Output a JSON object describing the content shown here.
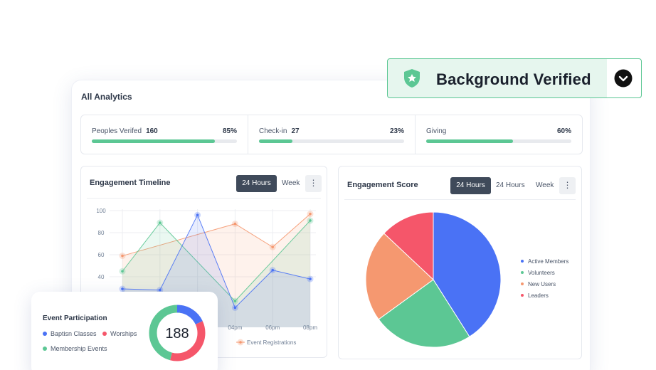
{
  "analytics": {
    "title": "All Analytics"
  },
  "stats": [
    {
      "label": "Peoples Verifed",
      "value": "160",
      "percent": "85%",
      "progress": 0.85
    },
    {
      "label": "Check-in",
      "value": "27",
      "percent": "23%",
      "progress": 0.23
    },
    {
      "label": "Giving",
      "value": "",
      "percent": "60%",
      "progress": 0.6
    }
  ],
  "engagement_timeline": {
    "title": "Engagement Timeline",
    "btn_24h": "24 Hours",
    "btn_week": "Week",
    "more_icon": "vertical-dots-icon"
  },
  "engagement_score": {
    "title": "Engagement Score",
    "btn_24h_a": "24 Hours",
    "btn_24h_b": "24 Hours",
    "btn_week": "Week",
    "more_icon": "vertical-dots-icon",
    "legend": [
      "Active Members",
      "Volunteers",
      "New Users",
      "Leaders"
    ]
  },
  "badge": {
    "text": "Background Verified",
    "icon": "shield-star-icon",
    "toggle_icon": "chevron-down-circle-icon"
  },
  "event_participation": {
    "title": "Event Participation",
    "legend": [
      "Baptisn Classes",
      "Worships",
      "Membership Events"
    ],
    "total": "188"
  },
  "colors": {
    "blue": "#4a72f5",
    "green": "#5cc794",
    "orange": "#f59870",
    "red": "#f5566a",
    "dark": "#3f4a5a"
  },
  "chart_data": [
    {
      "type": "line",
      "title": "Engagement Timeline",
      "x": [
        "",
        "",
        "",
        "04pm",
        "06pm",
        "08pm"
      ],
      "ylim": [
        0,
        100
      ],
      "yticks": [
        "100",
        "80",
        "60",
        "40"
      ],
      "series": [
        {
          "name": "Event Registrations",
          "color": "#f59870",
          "values": [
            59,
            null,
            null,
            88,
            67,
            97
          ]
        },
        {
          "color": "#5cc794",
          "values": [
            45,
            89,
            null,
            18,
            null,
            91
          ]
        },
        {
          "color": "#4a72f5",
          "values": [
            29,
            28,
            96,
            12,
            46,
            38
          ]
        }
      ],
      "grid": true,
      "legend": "bottom"
    },
    {
      "type": "pie",
      "title": "Engagement Score",
      "labels": [
        "Active Members",
        "Volunteers",
        "New Users",
        "Leaders"
      ],
      "values": [
        41,
        24,
        22,
        13
      ],
      "colors": [
        "#4a72f5",
        "#5cc794",
        "#f59870",
        "#f5566a"
      ]
    },
    {
      "type": "pie",
      "title": "Event Participation",
      "labels": [
        "Baptisn Classes",
        "Worships",
        "Membership Events"
      ],
      "values": [
        18,
        36,
        46
      ],
      "colors": [
        "#4a72f5",
        "#f5566a",
        "#5cc794"
      ],
      "total": "188"
    }
  ]
}
